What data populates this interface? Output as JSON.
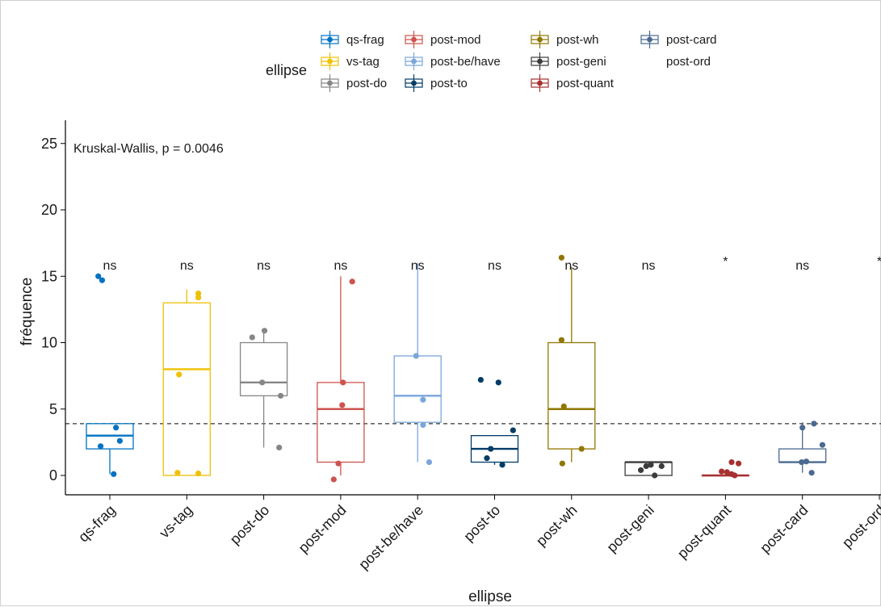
{
  "chart_data": {
    "type": "boxplot",
    "xlabel": "ellipse",
    "ylabel": "fréquence",
    "ylim": [
      -1.5,
      26
    ],
    "yticks": [
      0,
      5,
      10,
      15,
      20,
      25
    ],
    "reference_line": 3.9,
    "annotation": "Kruskal-Wallis, p = 0.0046",
    "legend": {
      "title": "ellipse",
      "placement": "top"
    },
    "groups": [
      {
        "name": "qs-frag",
        "color": "#0073C2",
        "sig": "ns",
        "box": {
          "q1": 2,
          "median": 3,
          "q3": 3.9,
          "whisker_low": 0.1,
          "whisker_high": 3.9
        },
        "points": [
          [
            -0.15,
            15.0
          ],
          [
            -0.1,
            14.7
          ],
          [
            0.08,
            3.6
          ],
          [
            0.13,
            2.6
          ],
          [
            -0.12,
            2.2
          ],
          [
            0.05,
            0.1
          ]
        ]
      },
      {
        "name": "vs-tag",
        "color": "#EFC000",
        "sig": "ns",
        "box": {
          "q1": 0,
          "median": 8,
          "q3": 13,
          "whisker_low": 0,
          "whisker_high": 14
        },
        "points": [
          [
            0.15,
            13.7
          ],
          [
            0.15,
            13.4
          ],
          [
            -0.1,
            7.6
          ],
          [
            -0.12,
            0.2
          ],
          [
            0.15,
            0.15
          ]
        ]
      },
      {
        "name": "post-do",
        "color": "#868686",
        "sig": "ns",
        "box": {
          "q1": 6,
          "median": 7,
          "q3": 10,
          "whisker_low": 2.1,
          "whisker_high": 10.9
        },
        "points": [
          [
            -0.15,
            10.4
          ],
          [
            0.01,
            10.9
          ],
          [
            -0.02,
            7.0
          ],
          [
            0.22,
            6.0
          ],
          [
            0.2,
            2.1
          ]
        ]
      },
      {
        "name": "post-mod",
        "color": "#CD534C",
        "sig": "ns",
        "box": {
          "q1": 1,
          "median": 5,
          "q3": 7,
          "whisker_low": 0,
          "whisker_high": 15
        },
        "points": [
          [
            0.15,
            14.6
          ],
          [
            0.03,
            7.0
          ],
          [
            0.02,
            5.3
          ],
          [
            -0.03,
            0.9
          ],
          [
            -0.09,
            -0.3
          ]
        ]
      },
      {
        "name": "post-be/have",
        "color": "#7AA6DC",
        "sig": "ns",
        "box": {
          "q1": 4,
          "median": 6,
          "q3": 9,
          "whisker_low": 1,
          "whisker_high": 16
        },
        "points": [
          [
            -0.02,
            9.0
          ],
          [
            0.07,
            5.7
          ],
          [
            0.07,
            3.8
          ],
          [
            0.15,
            1.0
          ]
        ]
      },
      {
        "name": "post-to",
        "color": "#003C67",
        "sig": "ns",
        "box": {
          "q1": 1,
          "median": 2,
          "q3": 3,
          "whisker_low": 0.8,
          "whisker_high": 3
        },
        "points": [
          [
            -0.18,
            7.2
          ],
          [
            0.05,
            7.0
          ],
          [
            0.24,
            3.4
          ],
          [
            -0.05,
            2.0
          ],
          [
            -0.1,
            1.3
          ],
          [
            0.1,
            0.8
          ]
        ]
      },
      {
        "name": "post-wh",
        "color": "#8F7700",
        "sig": "ns",
        "box": {
          "q1": 2,
          "median": 5,
          "q3": 10,
          "whisker_low": 1,
          "whisker_high": 15.7
        },
        "points": [
          [
            -0.13,
            16.4
          ],
          [
            -0.13,
            10.2
          ],
          [
            -0.1,
            5.2
          ],
          [
            0.13,
            2.0
          ],
          [
            -0.12,
            0.9
          ]
        ]
      },
      {
        "name": "post-geni",
        "color": "#3B3B3B",
        "sig": "ns",
        "box": {
          "q1": 0,
          "median": 1,
          "q3": 1,
          "whisker_low": 0,
          "whisker_high": 1
        },
        "points": [
          [
            -0.1,
            0.4
          ],
          [
            -0.03,
            0.7
          ],
          [
            0.03,
            0.8
          ],
          [
            0.17,
            0.7
          ],
          [
            0.08,
            0.0
          ]
        ]
      },
      {
        "name": "post-quant",
        "color": "#A73030",
        "sig": "*",
        "box": {
          "q1": 0,
          "median": 0,
          "q3": 0,
          "whisker_low": 0,
          "whisker_high": 0
        },
        "points": [
          [
            0.08,
            1.0
          ],
          [
            0.17,
            0.9
          ],
          [
            -0.05,
            0.3
          ],
          [
            0.02,
            0.25
          ],
          [
            0.08,
            0.1
          ],
          [
            0.12,
            0.0
          ]
        ]
      },
      {
        "name": "post-card",
        "color": "#4A6990",
        "sig": "ns",
        "box": {
          "q1": 1,
          "median": 1,
          "q3": 2,
          "whisker_low": 0.2,
          "whisker_high": 4
        },
        "points": [
          [
            0.0,
            3.6
          ],
          [
            0.15,
            3.9
          ],
          [
            0.26,
            2.3
          ],
          [
            -0.01,
            1.0
          ],
          [
            0.05,
            1.05
          ],
          [
            0.12,
            0.2
          ]
        ]
      },
      {
        "name": "post-ord",
        "color": "#ffffff",
        "sig": "*",
        "box": null,
        "points": []
      }
    ]
  }
}
